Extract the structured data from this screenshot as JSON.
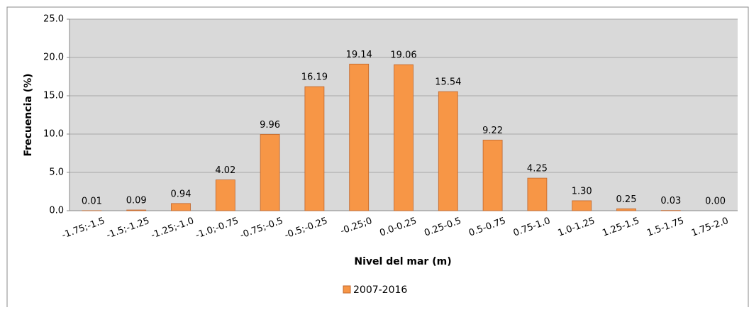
{
  "chart_data": {
    "type": "bar",
    "x_label": "Nivel del mar (m)",
    "y_label": "Frecuencia (%)",
    "categories": [
      "-1.75;-1.5",
      "-1.5;-1.25",
      "-1.25;-1.0",
      "-1.0;-0.75",
      "-0.75;-0.5",
      "-0.5;-0.25",
      "-0.25;0",
      "0.0-0.25",
      "0.25-0.5",
      "0.5-0.75",
      "0.75-1.0",
      "1.0-1.25",
      "1.25-1.5",
      "1.5-1.75",
      "1.75-2.0"
    ],
    "series": [
      {
        "name": "2007-2016",
        "color": "#f79646",
        "values": [
          0.01,
          0.09,
          0.94,
          4.02,
          9.96,
          16.19,
          19.14,
          19.06,
          15.54,
          9.22,
          4.25,
          1.3,
          0.25,
          0.03,
          0
        ],
        "value_labels": [
          "0.01",
          "0.09",
          "0.94",
          "4.02",
          "9.96",
          "16.19",
          "19.14",
          "19.06",
          "15.54",
          "9.22",
          "4.25",
          "1.30",
          "0.25",
          "0.03",
          "0.00"
        ]
      }
    ],
    "ylim": [
      0,
      25
    ],
    "yticks": [
      {
        "value": 0,
        "label": "0.0"
      },
      {
        "value": 5,
        "label": "5.0"
      },
      {
        "value": 10,
        "label": "10.0"
      },
      {
        "value": 15,
        "label": "15.0"
      },
      {
        "value": 20,
        "label": "20.0"
      },
      {
        "value": 25,
        "label": "25.0"
      }
    ],
    "grid": true,
    "legend": "bottom",
    "plot_background": "#d9d9d9"
  }
}
